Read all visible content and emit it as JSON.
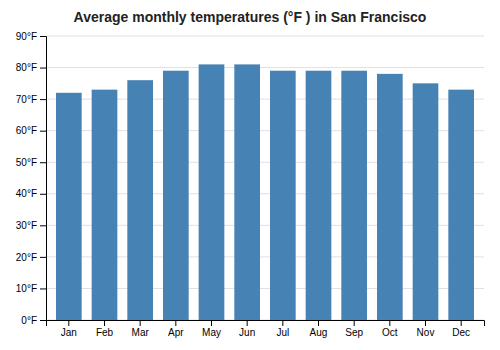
{
  "chart_data": {
    "type": "bar",
    "title": "Average monthly temperatures (°F ) in San Francisco",
    "categories": [
      "Jan",
      "Feb",
      "Mar",
      "Apr",
      "May",
      "Jun",
      "Jul",
      "Aug",
      "Sep",
      "Oct",
      "Nov",
      "Dec"
    ],
    "values": [
      72,
      73,
      76,
      79,
      81,
      81,
      79,
      79,
      79,
      78,
      75,
      73
    ],
    "ylim": [
      0,
      90
    ],
    "yticks": [
      {
        "value": 0,
        "label": "0°F"
      },
      {
        "value": 10,
        "label": "10°F"
      },
      {
        "value": 20,
        "label": "20°F"
      },
      {
        "value": 30,
        "label": "30°F"
      },
      {
        "value": 40,
        "label": "40°F"
      },
      {
        "value": 50,
        "label": "50°F"
      },
      {
        "value": 60,
        "label": "60°F"
      },
      {
        "value": 70,
        "label": "70°F"
      },
      {
        "value": 80,
        "label": "80°F"
      },
      {
        "value": 90,
        "label": "90°F"
      }
    ],
    "grid": true
  }
}
